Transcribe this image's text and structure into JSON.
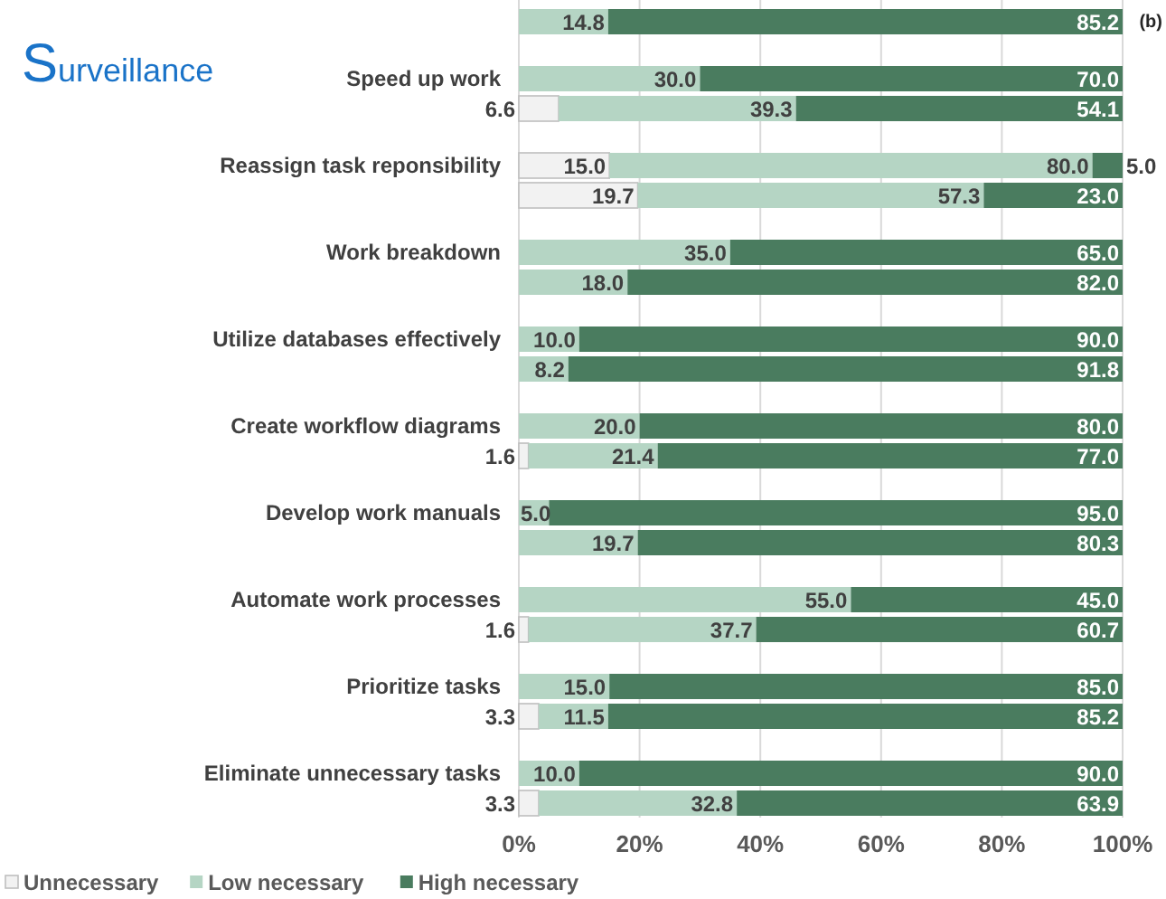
{
  "chart_data": {
    "type": "bar",
    "orientation": "horizontal",
    "stacked": true,
    "title": "Surveillance",
    "annotations": [
      "(b)"
    ],
    "categories": [
      null,
      "Speed up work",
      null,
      "Reassign task reponsibility",
      null,
      "Work breakdown",
      null,
      "Utilize databases effectively",
      null,
      "Create workflow diagrams",
      null,
      "Develop work manuals",
      null,
      "Automate work processes",
      null,
      "Prioritize tasks",
      null,
      "Eliminate unnecessary tasks",
      null
    ],
    "series": [
      {
        "name": "Unnecessary",
        "color": "#f2f2f2",
        "values": [
          null,
          null,
          6.6,
          15,
          19.7,
          null,
          null,
          null,
          null,
          null,
          1.6,
          null,
          null,
          null,
          1.6,
          null,
          3.3,
          null,
          3.3
        ],
        "value_labels": [
          null,
          null,
          "6.6",
          "15.0",
          "19.7",
          null,
          null,
          null,
          null,
          null,
          "1.6",
          null,
          null,
          null,
          "1.6",
          null,
          "3.3",
          null,
          "3.3"
        ]
      },
      {
        "name": "Low necessary",
        "color": "#b5d5c4",
        "values": [
          14.8,
          30,
          39.3,
          80,
          57.3,
          35,
          18,
          10,
          8.2,
          20,
          21.4,
          5,
          19.7,
          55,
          37.7,
          15,
          11.5,
          10,
          32.8
        ],
        "value_labels": [
          "14.8",
          "30.0",
          "39.3",
          "80.0",
          "57.3",
          "35.0",
          "18.0",
          "10.0",
          "8.2",
          "20.0",
          "21.4",
          "5.0",
          "19.7",
          "55.0",
          "37.7",
          "15.0",
          "11.5",
          "10.0",
          "32.8"
        ]
      },
      {
        "name": "High necessary",
        "color": "#4a7c5f",
        "values": [
          85.2,
          70,
          54.1,
          5,
          23,
          65,
          82,
          90,
          91.8,
          80,
          77,
          95,
          80.3,
          45,
          60.7,
          85,
          85.2,
          90,
          63.9
        ],
        "value_labels": [
          "85.2",
          "70.0",
          "54.1",
          "5.0",
          "23.0",
          "65.0",
          "82.0",
          "90.0",
          "91.8",
          "80.0",
          "77.0",
          "95.0",
          "80.3",
          "45.0",
          "60.7",
          "85.0",
          "85.2",
          "90.0",
          "63.9"
        ]
      }
    ],
    "xlim": [
      0,
      100
    ],
    "xticks": [
      {
        "value": 0,
        "label": "0%"
      },
      {
        "value": 20,
        "label": "20%"
      },
      {
        "value": 40,
        "label": "40%"
      },
      {
        "value": 60,
        "label": "60%"
      },
      {
        "value": 80,
        "label": "80%"
      },
      {
        "value": 100,
        "label": "100%"
      }
    ],
    "grid": "x",
    "legend": "bottom left"
  }
}
